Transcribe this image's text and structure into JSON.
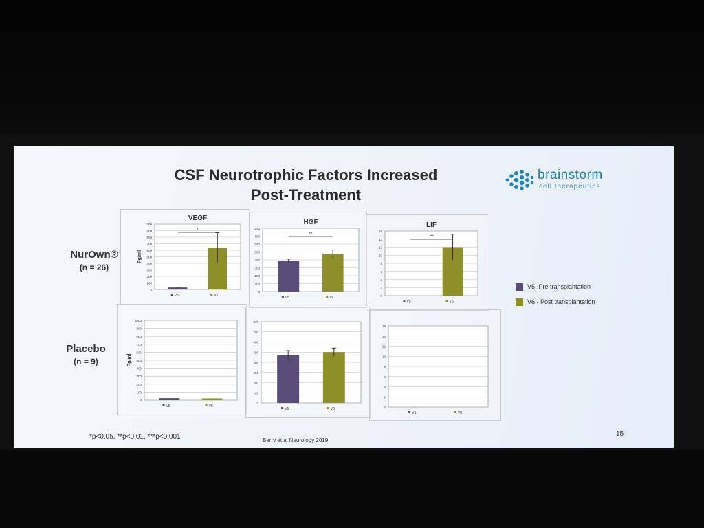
{
  "slide": {
    "title_line1": "CSF Neurotrophic Factors Increased",
    "title_line2": "Post-Treatment",
    "logo_name": "brainstorm",
    "logo_sub": "cell therapeutics",
    "row1_label": "NurOwn®",
    "row1_n": "(n = 26)",
    "row2_label": "Placebo",
    "row2_n": "(n = 9)",
    "legend_v5": "V5 -Pre transplantation",
    "legend_v6": "V6 - Post transplantation",
    "footnote": "*p<0.05, **p<0.01, ***p<0.001",
    "citation": "Berry et al Neurology 2019",
    "page_number": "15"
  },
  "colors": {
    "v5": "#5a4d79",
    "v6": "#8f8f2a"
  },
  "chart_data": [
    {
      "type": "bar",
      "title": "VEGF",
      "group": "NurOwn",
      "ylabel": "Pg/ml",
      "categories": [
        "V5",
        "V6"
      ],
      "values": [
        30,
        640
      ],
      "errors": [
        5,
        230
      ],
      "ylim": [
        0,
        1000
      ],
      "yticks": [
        0,
        100,
        200,
        300,
        400,
        500,
        600,
        700,
        800,
        900,
        1000
      ],
      "significance": "*"
    },
    {
      "type": "bar",
      "title": "HGF",
      "group": "NurOwn",
      "ylabel": "",
      "categories": [
        "V5",
        "V6"
      ],
      "values": [
        385,
        475
      ],
      "errors": [
        25,
        50
      ],
      "ylim": [
        0,
        800
      ],
      "yticks": [
        0,
        100,
        200,
        300,
        400,
        500,
        600,
        700,
        800
      ],
      "significance": "**"
    },
    {
      "type": "bar",
      "title": "LIF",
      "group": "NurOwn",
      "ylabel": "",
      "categories": [
        "V5",
        "V6"
      ],
      "values": [
        0,
        12
      ],
      "errors": [
        0,
        3.2
      ],
      "ylim": [
        0,
        16
      ],
      "yticks": [
        0,
        2,
        4,
        6,
        8,
        10,
        12,
        14,
        16
      ],
      "significance": "***"
    },
    {
      "type": "bar",
      "title": "",
      "group": "Placebo",
      "ylabel": "Pg/ml",
      "categories": [
        "V5",
        "V6"
      ],
      "values": [
        25,
        22
      ],
      "errors": [
        0,
        0
      ],
      "ylim": [
        0,
        1000
      ],
      "yticks": [
        0,
        100,
        200,
        300,
        400,
        500,
        600,
        700,
        800,
        900,
        1000
      ],
      "significance": ""
    },
    {
      "type": "bar",
      "title": "",
      "group": "Placebo",
      "ylabel": "",
      "categories": [
        "V5",
        "V6"
      ],
      "values": [
        470,
        500
      ],
      "errors": [
        45,
        40
      ],
      "ylim": [
        0,
        800
      ],
      "yticks": [
        0,
        100,
        200,
        300,
        400,
        500,
        600,
        700,
        800
      ],
      "significance": ""
    },
    {
      "type": "bar",
      "title": "",
      "group": "Placebo",
      "ylabel": "",
      "categories": [
        "V5",
        "V6"
      ],
      "values": [
        0,
        0
      ],
      "errors": [
        0,
        0
      ],
      "ylim": [
        0,
        16
      ],
      "yticks": [
        0,
        2,
        4,
        6,
        8,
        10,
        12,
        14,
        16
      ],
      "significance": ""
    }
  ]
}
